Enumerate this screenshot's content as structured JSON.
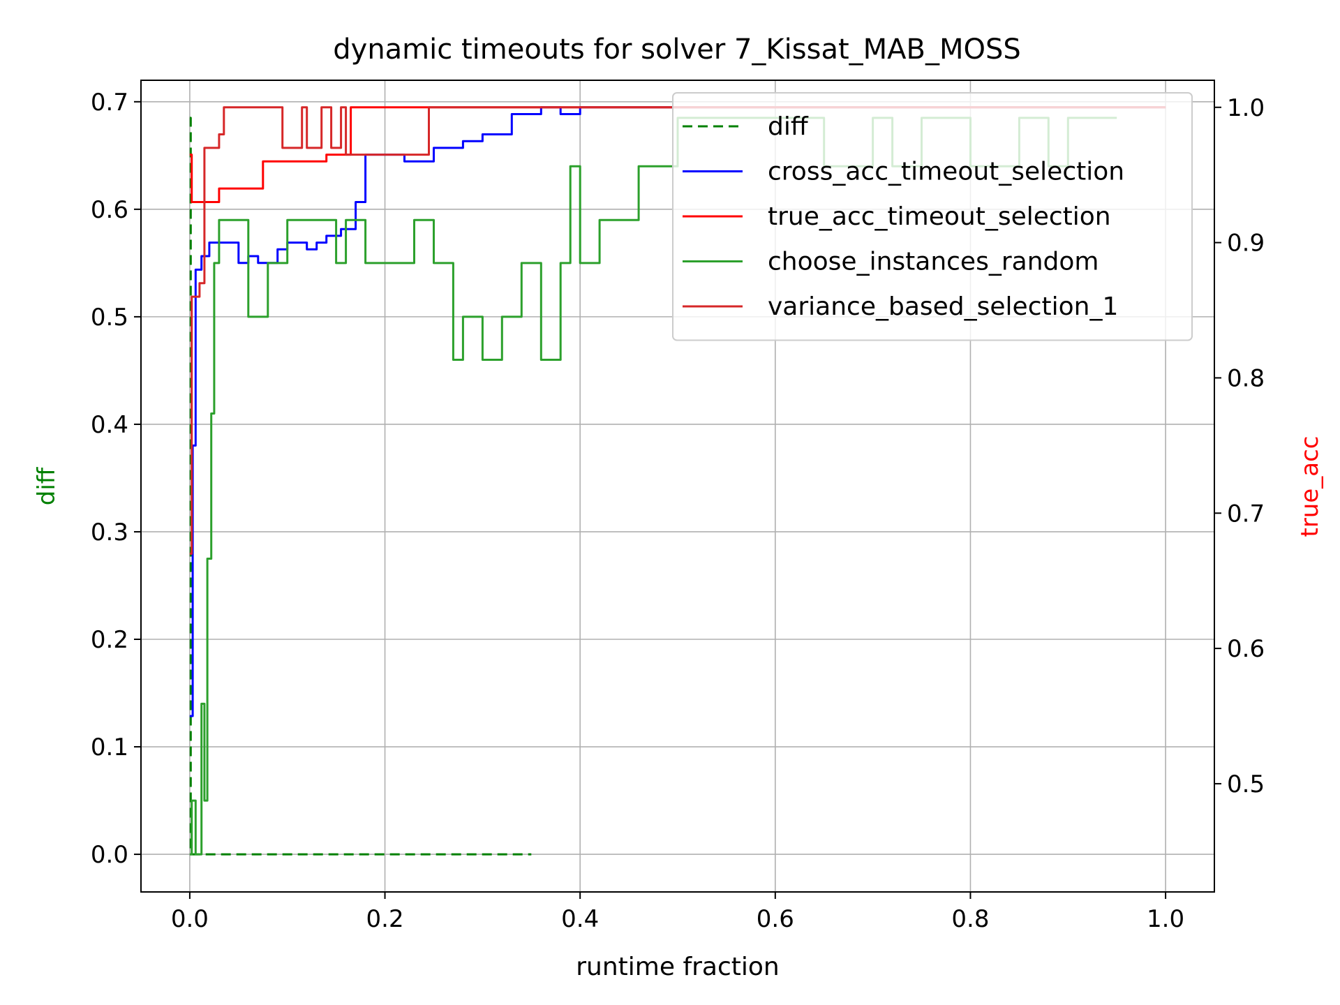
{
  "chart_data": {
    "type": "line",
    "title": "dynamic timeouts for solver 7_Kissat_MAB_MOSS",
    "xlabel": "runtime fraction",
    "ylabel_left": "diff",
    "ylabel_right": "true_acc",
    "xlim": [
      -0.05,
      1.05
    ],
    "ylim_left": [
      -0.035,
      0.72
    ],
    "ylim_right": [
      0.42,
      1.02
    ],
    "xticks": [
      "0.0",
      "0.2",
      "0.4",
      "0.6",
      "0.8",
      "1.0"
    ],
    "xtick_values": [
      0.0,
      0.2,
      0.4,
      0.6,
      0.8,
      1.0
    ],
    "yticks_left": [
      "0.0",
      "0.1",
      "0.2",
      "0.3",
      "0.4",
      "0.5",
      "0.6",
      "0.7"
    ],
    "ytick_values_left": [
      0.0,
      0.1,
      0.2,
      0.3,
      0.4,
      0.5,
      0.6,
      0.7
    ],
    "yticks_right": [
      "0.5",
      "0.6",
      "0.7",
      "0.8",
      "0.9",
      "1.0"
    ],
    "ytick_values_right": [
      0.5,
      0.6,
      0.7,
      0.8,
      0.9,
      1.0
    ],
    "grid": true,
    "legend_position": "top-right",
    "series": [
      {
        "name": "diff",
        "axis": "left",
        "color": "#008000",
        "style": "dashed",
        "points": [
          [
            0.0,
            0.685
          ],
          [
            0.001,
            0.0
          ],
          [
            0.008,
            0.0
          ],
          [
            0.35,
            0.0
          ]
        ]
      },
      {
        "name": "cross_acc_timeout_selection",
        "axis": "right",
        "color": "#0000ff",
        "points": [
          [
            0.0,
            0.55
          ],
          [
            0.003,
            0.75
          ],
          [
            0.006,
            0.88
          ],
          [
            0.012,
            0.89
          ],
          [
            0.02,
            0.9
          ],
          [
            0.03,
            0.9
          ],
          [
            0.04,
            0.9
          ],
          [
            0.05,
            0.885
          ],
          [
            0.06,
            0.89
          ],
          [
            0.07,
            0.885
          ],
          [
            0.09,
            0.895
          ],
          [
            0.1,
            0.9
          ],
          [
            0.12,
            0.895
          ],
          [
            0.13,
            0.9
          ],
          [
            0.14,
            0.905
          ],
          [
            0.155,
            0.91
          ],
          [
            0.17,
            0.93
          ],
          [
            0.18,
            0.965
          ],
          [
            0.2,
            0.965
          ],
          [
            0.22,
            0.96
          ],
          [
            0.25,
            0.97
          ],
          [
            0.28,
            0.975
          ],
          [
            0.3,
            0.98
          ],
          [
            0.33,
            0.995
          ],
          [
            0.36,
            1.0
          ],
          [
            0.38,
            0.995
          ],
          [
            0.4,
            1.0
          ],
          [
            1.0,
            1.0
          ]
        ]
      },
      {
        "name": "true_acc_timeout_selection",
        "axis": "right",
        "color": "#ff0000",
        "points": [
          [
            0.0,
            0.965
          ],
          [
            0.002,
            0.93
          ],
          [
            0.01,
            0.93
          ],
          [
            0.02,
            0.93
          ],
          [
            0.03,
            0.94
          ],
          [
            0.06,
            0.94
          ],
          [
            0.07,
            0.94
          ],
          [
            0.075,
            0.96
          ],
          [
            0.13,
            0.96
          ],
          [
            0.14,
            0.965
          ],
          [
            0.16,
            0.965
          ],
          [
            0.165,
            1.0
          ],
          [
            1.0,
            1.0
          ]
        ]
      },
      {
        "name": "choose_instances_random",
        "axis": "left",
        "color": "#2ca02c",
        "points": [
          [
            0.0,
            0.0
          ],
          [
            0.002,
            0.05
          ],
          [
            0.006,
            0.0
          ],
          [
            0.012,
            0.14
          ],
          [
            0.015,
            0.05
          ],
          [
            0.018,
            0.275
          ],
          [
            0.022,
            0.41
          ],
          [
            0.025,
            0.55
          ],
          [
            0.03,
            0.59
          ],
          [
            0.06,
            0.5
          ],
          [
            0.08,
            0.55
          ],
          [
            0.1,
            0.59
          ],
          [
            0.15,
            0.55
          ],
          [
            0.16,
            0.59
          ],
          [
            0.18,
            0.55
          ],
          [
            0.23,
            0.59
          ],
          [
            0.25,
            0.55
          ],
          [
            0.27,
            0.46
          ],
          [
            0.28,
            0.5
          ],
          [
            0.3,
            0.46
          ],
          [
            0.32,
            0.5
          ],
          [
            0.34,
            0.55
          ],
          [
            0.36,
            0.46
          ],
          [
            0.38,
            0.55
          ],
          [
            0.39,
            0.64
          ],
          [
            0.4,
            0.55
          ],
          [
            0.42,
            0.59
          ],
          [
            0.45,
            0.59
          ],
          [
            0.46,
            0.64
          ],
          [
            0.48,
            0.64
          ],
          [
            0.5,
            0.685
          ],
          [
            0.55,
            0.685
          ],
          [
            0.6,
            0.685
          ],
          [
            0.65,
            0.64
          ],
          [
            0.7,
            0.685
          ],
          [
            0.72,
            0.64
          ],
          [
            0.75,
            0.685
          ],
          [
            0.8,
            0.64
          ],
          [
            0.85,
            0.685
          ],
          [
            0.88,
            0.64
          ],
          [
            0.9,
            0.685
          ],
          [
            0.95,
            0.685
          ]
        ]
      },
      {
        "name": "variance_based_selection_1",
        "axis": "right",
        "color": "#d62728",
        "points": [
          [
            0.0,
            0.67
          ],
          [
            0.002,
            0.86
          ],
          [
            0.006,
            0.86
          ],
          [
            0.01,
            0.87
          ],
          [
            0.015,
            0.97
          ],
          [
            0.02,
            0.97
          ],
          [
            0.03,
            0.98
          ],
          [
            0.035,
            1.0
          ],
          [
            0.09,
            1.0
          ],
          [
            0.095,
            0.97
          ],
          [
            0.11,
            0.97
          ],
          [
            0.115,
            1.0
          ],
          [
            0.12,
            0.97
          ],
          [
            0.13,
            0.97
          ],
          [
            0.135,
            1.0
          ],
          [
            0.145,
            0.97
          ],
          [
            0.155,
            1.0
          ],
          [
            0.16,
            0.965
          ],
          [
            0.24,
            0.965
          ],
          [
            0.245,
            1.0
          ],
          [
            1.0,
            1.0
          ]
        ]
      }
    ]
  }
}
